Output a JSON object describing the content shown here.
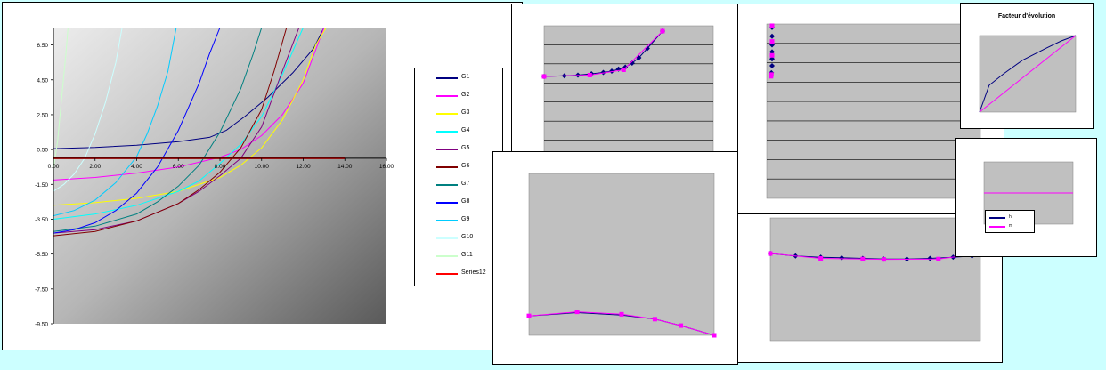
{
  "colors": {
    "page_bg": "#ccffff",
    "plot_gray": "#c0c0c0",
    "navy": "#000080",
    "magenta": "#ff00ff"
  },
  "main_chart": {
    "type": "line",
    "xlim": [
      0,
      16
    ],
    "ylim": [
      -9.5,
      7.5
    ],
    "x_ticks": [
      "0.00",
      "2.00",
      "4.00",
      "6.00",
      "8.00",
      "10.00",
      "12.00",
      "14.00",
      "16.00"
    ],
    "y_ticks": [
      "6.50",
      "4.50",
      "2.50",
      "0.50",
      "-1.50",
      "-3.50",
      "-5.50",
      "-7.50",
      "-9.50"
    ],
    "series": [
      {
        "name": "G1",
        "color": "#000080",
        "points": [
          [
            0,
            0.55
          ],
          [
            2,
            0.62
          ],
          [
            4,
            0.75
          ],
          [
            6,
            0.95
          ],
          [
            7.5,
            1.2
          ],
          [
            8.3,
            1.6
          ],
          [
            9.2,
            2.4
          ],
          [
            10.3,
            3.5
          ],
          [
            11.5,
            4.9
          ],
          [
            12.5,
            6.3
          ],
          [
            13.0,
            7.5
          ]
        ]
      },
      {
        "name": "G2",
        "color": "#ff00ff",
        "points": [
          [
            0,
            -1.25
          ],
          [
            2,
            -1.1
          ],
          [
            4,
            -0.85
          ],
          [
            6,
            -0.5
          ],
          [
            8,
            0.05
          ],
          [
            9,
            0.5
          ],
          [
            10,
            1.3
          ],
          [
            11,
            2.5
          ],
          [
            12,
            4.3
          ],
          [
            13,
            7.5
          ]
        ]
      },
      {
        "name": "G3",
        "color": "#ffff00",
        "points": [
          [
            0,
            -2.7
          ],
          [
            2,
            -2.55
          ],
          [
            4,
            -2.3
          ],
          [
            6,
            -1.9
          ],
          [
            8,
            -1.1
          ],
          [
            9,
            -0.4
          ],
          [
            10,
            0.6
          ],
          [
            11,
            2.2
          ],
          [
            12,
            4.5
          ],
          [
            12.6,
            6.5
          ],
          [
            13.1,
            7.5
          ]
        ]
      },
      {
        "name": "G4",
        "color": "#00ffff",
        "points": [
          [
            0,
            -3.5
          ],
          [
            2,
            -3.2
          ],
          [
            4,
            -2.7
          ],
          [
            6,
            -1.9
          ],
          [
            7,
            -1.3
          ],
          [
            8,
            -0.3
          ],
          [
            9,
            0.8
          ],
          [
            10,
            2.4
          ],
          [
            11,
            4.8
          ],
          [
            12,
            7.5
          ]
        ]
      },
      {
        "name": "G5",
        "color": "#800080",
        "points": [
          [
            0,
            -4.3
          ],
          [
            2,
            -4.1
          ],
          [
            4,
            -3.6
          ],
          [
            6,
            -2.6
          ],
          [
            7,
            -1.9
          ],
          [
            8,
            -1.0
          ],
          [
            9,
            0.0
          ],
          [
            10,
            1.8
          ],
          [
            11,
            5.0
          ],
          [
            11.8,
            7.5
          ]
        ]
      },
      {
        "name": "G6",
        "color": "#800000",
        "points": [
          [
            0,
            -4.45
          ],
          [
            2,
            -4.2
          ],
          [
            4,
            -3.6
          ],
          [
            6,
            -2.6
          ],
          [
            7,
            -1.8
          ],
          [
            8,
            -0.8
          ],
          [
            9,
            0.6
          ],
          [
            10,
            2.8
          ],
          [
            10.6,
            5.0
          ],
          [
            11.2,
            7.5
          ]
        ]
      },
      {
        "name": "G7",
        "color": "#008080",
        "points": [
          [
            0,
            -4.2
          ],
          [
            2,
            -3.9
          ],
          [
            4,
            -3.2
          ],
          [
            5,
            -2.5
          ],
          [
            6,
            -1.6
          ],
          [
            7,
            -0.4
          ],
          [
            8,
            1.5
          ],
          [
            9,
            4.0
          ],
          [
            9.6,
            6.0
          ],
          [
            10.0,
            7.5
          ]
        ]
      },
      {
        "name": "G8",
        "color": "#0000ff",
        "points": [
          [
            0,
            -4.3
          ],
          [
            1,
            -4.1
          ],
          [
            2,
            -3.7
          ],
          [
            3,
            -3.0
          ],
          [
            4,
            -2.0
          ],
          [
            5,
            -0.5
          ],
          [
            6,
            1.6
          ],
          [
            7,
            4.3
          ],
          [
            7.5,
            6.0
          ],
          [
            8.0,
            7.5
          ]
        ]
      },
      {
        "name": "G9",
        "color": "#00ccff",
        "points": [
          [
            0,
            -3.3
          ],
          [
            1,
            -3.0
          ],
          [
            2,
            -2.4
          ],
          [
            3,
            -1.4
          ],
          [
            4,
            0.1
          ],
          [
            4.5,
            1.4
          ],
          [
            5,
            3.0
          ],
          [
            5.5,
            5.0
          ],
          [
            5.9,
            7.5
          ]
        ]
      },
      {
        "name": "G10",
        "color": "#ccffff",
        "points": [
          [
            0,
            -1.9
          ],
          [
            0.5,
            -1.5
          ],
          [
            1,
            -0.9
          ],
          [
            1.5,
            0.0
          ],
          [
            2,
            1.4
          ],
          [
            2.5,
            3.2
          ],
          [
            3,
            5.5
          ],
          [
            3.3,
            7.5
          ]
        ]
      },
      {
        "name": "G11",
        "color": "#ccffcc",
        "points": [
          [
            0,
            -0.6
          ],
          [
            0.2,
            1.0
          ],
          [
            0.4,
            3.5
          ],
          [
            0.6,
            6.0
          ],
          [
            0.7,
            7.5
          ]
        ]
      },
      {
        "name": "Series12",
        "color": "#ff0000",
        "points": [
          [
            0,
            0
          ],
          [
            14,
            0
          ]
        ]
      }
    ]
  },
  "legend": {
    "entries": [
      {
        "label": "G1",
        "color": "#000080"
      },
      {
        "label": "G2",
        "color": "#ff00ff"
      },
      {
        "label": "G3",
        "color": "#ffff00"
      },
      {
        "label": "G4",
        "color": "#00ffff"
      },
      {
        "label": "G5",
        "color": "#800080"
      },
      {
        "label": "G6",
        "color": "#800000"
      },
      {
        "label": "G7",
        "color": "#008080"
      },
      {
        "label": "G8",
        "color": "#0000ff"
      },
      {
        "label": "G9",
        "color": "#00ccff"
      },
      {
        "label": "G10",
        "color": "#ccffff"
      },
      {
        "label": "G11",
        "color": "#ccffcc"
      },
      {
        "label": "Series12",
        "color": "#ff0000"
      }
    ]
  },
  "top_center_chart": {
    "type": "line",
    "xlim": [
      0,
      1
    ],
    "ylim": [
      0,
      1
    ],
    "gridlines": 7,
    "series": [
      {
        "marker": "diamond",
        "color": "#000080",
        "points": [
          [
            0,
            0.62
          ],
          [
            0.12,
            0.625
          ],
          [
            0.2,
            0.63
          ],
          [
            0.28,
            0.64
          ],
          [
            0.35,
            0.65
          ],
          [
            0.4,
            0.66
          ],
          [
            0.44,
            0.675
          ],
          [
            0.48,
            0.69
          ],
          [
            0.52,
            0.72
          ],
          [
            0.56,
            0.76
          ],
          [
            0.61,
            0.83
          ],
          [
            0.7,
            0.96
          ]
        ]
      },
      {
        "marker": "square",
        "color": "#ff00ff",
        "points": [
          [
            0,
            0.62
          ],
          [
            0.27,
            0.63
          ],
          [
            0.47,
            0.67
          ],
          [
            0.7,
            0.96
          ]
        ]
      }
    ]
  },
  "top_right_chart": {
    "type": "scatter",
    "xlim": [
      0,
      1
    ],
    "ylim": [
      0,
      1
    ],
    "gridlines": 9,
    "series": [
      {
        "marker": "diamond",
        "color": "#000080",
        "points": [
          [
            0.025,
            0.98
          ],
          [
            0.025,
            0.93
          ],
          [
            0.025,
            0.88
          ],
          [
            0.025,
            0.84
          ],
          [
            0.025,
            0.8
          ],
          [
            0.025,
            0.76
          ],
          [
            0.022,
            0.72
          ]
        ]
      },
      {
        "marker": "square",
        "color": "#ff00ff",
        "points": [
          [
            0.025,
            0.99
          ],
          [
            0.025,
            0.9
          ],
          [
            0.025,
            0.82
          ],
          [
            0.022,
            0.71
          ],
          [
            0.02,
            0.7
          ]
        ]
      }
    ]
  },
  "bottom_center_chart": {
    "type": "line",
    "xlim": [
      0,
      1
    ],
    "ylim": [
      0,
      1
    ],
    "series": [
      {
        "marker": "none",
        "color": "#000080",
        "points": [
          [
            0,
            0.12
          ],
          [
            0.26,
            0.14
          ],
          [
            0.5,
            0.125
          ],
          [
            0.68,
            0.1
          ],
          [
            0.82,
            0.06
          ],
          [
            1.0,
            0.0
          ]
        ]
      },
      {
        "marker": "square",
        "color": "#ff00ff",
        "points": [
          [
            0,
            0.12
          ],
          [
            0.26,
            0.145
          ],
          [
            0.5,
            0.13
          ],
          [
            0.68,
            0.1
          ],
          [
            0.82,
            0.06
          ],
          [
            1.0,
            0.0
          ]
        ]
      }
    ]
  },
  "bottom_right_chart": {
    "type": "line",
    "xlim": [
      0,
      1
    ],
    "ylim": [
      0,
      1
    ],
    "series": [
      {
        "marker": "diamond",
        "color": "#000080",
        "points": [
          [
            0,
            0.71
          ],
          [
            0.12,
            0.69
          ],
          [
            0.24,
            0.68
          ],
          [
            0.34,
            0.675
          ],
          [
            0.44,
            0.67
          ],
          [
            0.54,
            0.665
          ],
          [
            0.65,
            0.665
          ],
          [
            0.76,
            0.67
          ],
          [
            0.87,
            0.68
          ],
          [
            0.96,
            0.69
          ],
          [
            1.0,
            0.71
          ]
        ]
      },
      {
        "marker": "square",
        "color": "#ff00ff",
        "points": [
          [
            0,
            0.71
          ],
          [
            0.24,
            0.67
          ],
          [
            0.44,
            0.665
          ],
          [
            0.54,
            0.662
          ],
          [
            0.8,
            0.665
          ],
          [
            1.0,
            0.71
          ]
        ]
      }
    ]
  },
  "factor_chart": {
    "type": "line",
    "title": "Facteur d'évolution",
    "xlim": [
      0,
      1
    ],
    "ylim": [
      0,
      1
    ],
    "series": [
      {
        "color": "#000080",
        "points": [
          [
            0,
            0
          ],
          [
            0.1,
            0.35
          ],
          [
            0.25,
            0.5
          ],
          [
            0.45,
            0.68
          ],
          [
            0.7,
            0.84
          ],
          [
            0.85,
            0.93
          ],
          [
            1.0,
            1.0
          ]
        ]
      },
      {
        "color": "#ff00ff",
        "points": [
          [
            0,
            0
          ],
          [
            1,
            1
          ]
        ]
      }
    ]
  },
  "small_chart": {
    "type": "line",
    "xlim": [
      0,
      1
    ],
    "ylim": [
      0,
      1
    ],
    "legend_entries": [
      {
        "label": "h",
        "color": "#000080"
      },
      {
        "label": "m",
        "color": "#ff00ff"
      }
    ],
    "series": [
      {
        "color": "#000080",
        "points": [
          [
            0,
            0.5
          ],
          [
            1,
            0.5
          ]
        ]
      },
      {
        "color": "#ff00ff",
        "points": [
          [
            0,
            0.5
          ],
          [
            1,
            0.5
          ]
        ]
      }
    ]
  }
}
